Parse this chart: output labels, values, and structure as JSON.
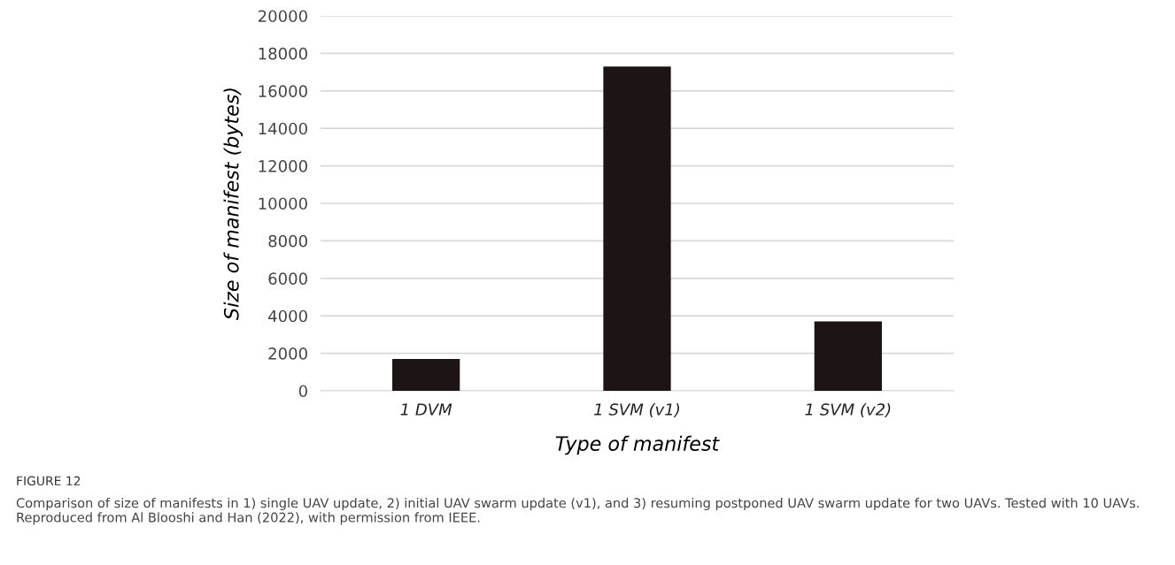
{
  "chart_data": {
    "type": "bar",
    "categories": [
      "1 DVM",
      "1 SVM (v1)",
      "1 SVM (v2)"
    ],
    "values": [
      1700,
      17300,
      3700
    ],
    "color": "#1c1415",
    "xlabel": "Type of manifest",
    "ylabel": "Size of manifest (bytes)",
    "ylim": [
      0,
      20000
    ],
    "yticks": [
      0,
      2000,
      4000,
      6000,
      8000,
      10000,
      12000,
      14000,
      16000,
      18000,
      20000
    ],
    "grid": "y",
    "annotations": [
      "FIGURE 12",
      "Comparison of size of manifests in 1) single UAV update, 2) initial UAV swarm update (v1), and 3) resuming postponed UAV swarm update for two UAVs. Tested with 10 UAVs. Reproduced from Al Blooshi and Han (2022), with permission from IEEE."
    ]
  }
}
